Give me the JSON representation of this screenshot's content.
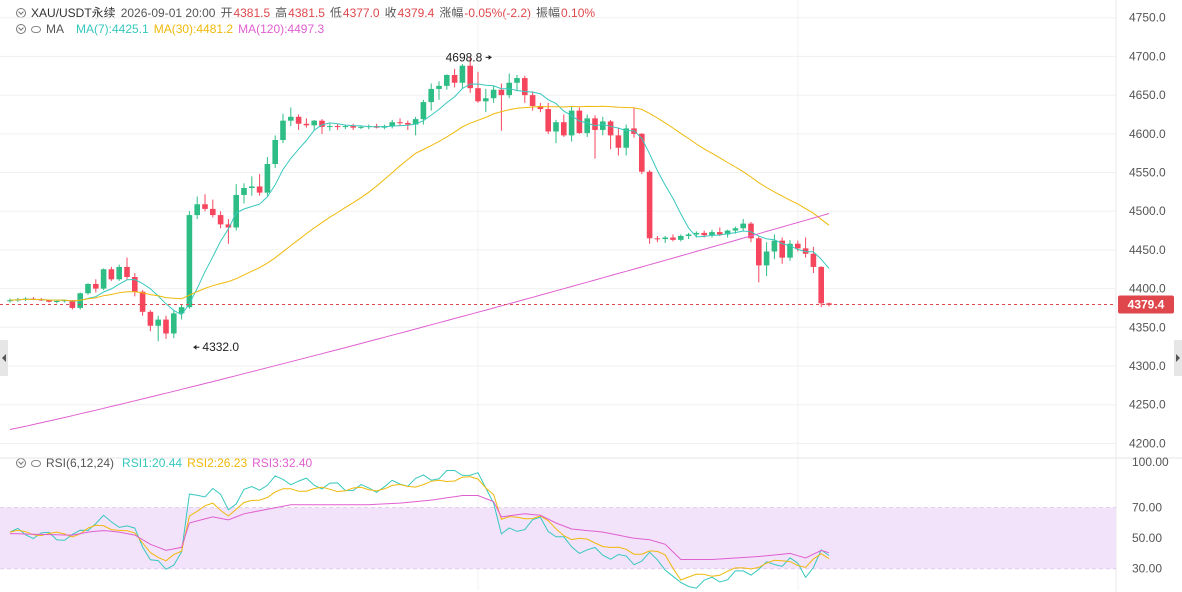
{
  "header": {
    "symbol": "XAU/USDT永续",
    "datetime": "2026-09-01 20:00",
    "open_label": "开",
    "open": "4381.5",
    "high_label": "高",
    "high": "4381.5",
    "low_label": "低",
    "low": "4377.0",
    "close_label": "收",
    "close": "4379.4",
    "change_label": "涨幅",
    "change": "-0.05%(-2.2)",
    "amplitude_label": "振幅",
    "amplitude": "0.10%"
  },
  "ma_legend": {
    "label": "MA",
    "ma7": "MA(7):4425.1",
    "ma30": "MA(30):4481.2",
    "ma120": "MA(120):4497.3"
  },
  "rsi_legend": {
    "label": "RSI(6,12,24)",
    "rsi1": "RSI1:20.44",
    "rsi2": "RSI2:26.23",
    "rsi3": "RSI3:32.40"
  },
  "colors": {
    "up": "#2ebd85",
    "down": "#f6465d",
    "ma7": "#37c8be",
    "ma30": "#f0b90b",
    "ma120": "#e05fcf",
    "rsi1": "#37c8be",
    "rsi2": "#f0b90b",
    "rsi3": "#e05fcf",
    "rsi_band": "#f2e3fb",
    "price_line": "#e0474c",
    "price_tag": "#e0474c",
    "grid": "#f0f0f0",
    "axis_text": "#555555"
  },
  "chart_data": [
    {
      "type": "candlestick",
      "title": "XAU/USDT永续",
      "y_ticks": [
        4750.0,
        4700.0,
        4650.0,
        4600.0,
        4550.0,
        4500.0,
        4450.0,
        4400.0,
        4350.0,
        4300.0,
        4250.0,
        4200.0
      ],
      "ylim": [
        4185,
        4760
      ],
      "last_price": 4379.4,
      "last_price_label": "4379.4",
      "annotations": [
        {
          "label": "4698.8",
          "value": 4698.8,
          "candle_index": 62
        },
        {
          "label": "4332.0",
          "value": 4332.0,
          "candle_index": 23
        }
      ],
      "candles": [
        [
          4384,
          4387,
          4382,
          4385
        ],
        [
          4385,
          4388,
          4383,
          4386
        ],
        [
          4386,
          4389,
          4384,
          4387
        ],
        [
          4387,
          4389,
          4385,
          4386
        ],
        [
          4386,
          4388,
          4384,
          4385
        ],
        [
          4385,
          4386,
          4382,
          4383
        ],
        [
          4383,
          4385,
          4381,
          4384
        ],
        [
          4384,
          4386,
          4382,
          4385
        ],
        [
          4385,
          4385,
          4373,
          4375
        ],
        [
          4375,
          4395,
          4373,
          4394
        ],
        [
          4394,
          4407,
          4392,
          4406
        ],
        [
          4406,
          4412,
          4395,
          4400
        ],
        [
          4400,
          4426,
          4398,
          4425
        ],
        [
          4425,
          4428,
          4410,
          4412
        ],
        [
          4412,
          4431,
          4410,
          4428
        ],
        [
          4428,
          4440,
          4412,
          4415
        ],
        [
          4415,
          4420,
          4390,
          4396
        ],
        [
          4396,
          4398,
          4365,
          4370
        ],
        [
          4370,
          4372,
          4345,
          4352
        ],
        [
          4352,
          4365,
          4332,
          4360
        ],
        [
          4360,
          4365,
          4335,
          4342
        ],
        [
          4342,
          4372,
          4336,
          4368
        ],
        [
          4368,
          4380,
          4360,
          4376
        ],
        [
          4376,
          4500,
          4374,
          4495
        ],
        [
          4495,
          4519,
          4490,
          4509
        ],
        [
          4509,
          4522,
          4500,
          4503
        ],
        [
          4503,
          4515,
          4492,
          4495
        ],
        [
          4495,
          4500,
          4478,
          4483
        ],
        [
          4483,
          4490,
          4458,
          4479
        ],
        [
          4479,
          4535,
          4475,
          4521
        ],
        [
          4521,
          4536,
          4510,
          4530
        ],
        [
          4530,
          4545,
          4520,
          4532
        ],
        [
          4532,
          4548,
          4520,
          4524
        ],
        [
          4524,
          4570,
          4520,
          4561
        ],
        [
          4561,
          4598,
          4556,
          4592
        ],
        [
          4592,
          4626,
          4588,
          4617
        ],
        [
          4617,
          4634,
          4610,
          4622
        ],
        [
          4622,
          4625,
          4605,
          4613
        ],
        [
          4613,
          4620,
          4608,
          4611
        ],
        [
          4611,
          4618,
          4604,
          4617
        ],
        [
          4617,
          4619,
          4600,
          4609
        ],
        [
          4609,
          4614,
          4604,
          4610
        ],
        [
          4610,
          4613,
          4605,
          4609
        ],
        [
          4609,
          4612,
          4606,
          4610
        ],
        [
          4610,
          4613,
          4605,
          4608
        ],
        [
          4608,
          4611,
          4606,
          4609
        ],
        [
          4609,
          4612,
          4606,
          4610
        ],
        [
          4610,
          4613,
          4607,
          4608
        ],
        [
          4608,
          4612,
          4606,
          4610
        ],
        [
          4610,
          4618,
          4607,
          4615
        ],
        [
          4615,
          4620,
          4610,
          4614
        ],
        [
          4614,
          4617,
          4605,
          4612
        ],
        [
          4612,
          4622,
          4598,
          4619
        ],
        [
          4619,
          4644,
          4612,
          4641
        ],
        [
          4641,
          4665,
          4630,
          4658
        ],
        [
          4658,
          4668,
          4644,
          4662
        ],
        [
          4662,
          4677,
          4657,
          4676
        ],
        [
          4676,
          4684,
          4660,
          4666
        ],
        [
          4666,
          4690,
          4658,
          4688
        ],
        [
          4688,
          4699,
          4653,
          4659
        ],
        [
          4659,
          4680,
          4640,
          4642
        ],
        [
          4642,
          4658,
          4628,
          4646
        ],
        [
          4646,
          4662,
          4640,
          4657
        ],
        [
          4657,
          4665,
          4604,
          4650
        ],
        [
          4650,
          4678,
          4646,
          4666
        ],
        [
          4666,
          4676,
          4655,
          4672
        ],
        [
          4672,
          4675,
          4640,
          4650
        ],
        [
          4650,
          4655,
          4630,
          4636
        ],
        [
          4636,
          4640,
          4628,
          4632
        ],
        [
          4632,
          4640,
          4600,
          4603
        ],
        [
          4603,
          4618,
          4588,
          4615
        ],
        [
          4615,
          4625,
          4596,
          4598
        ],
        [
          4598,
          4636,
          4590,
          4630
        ],
        [
          4630,
          4634,
          4600,
          4601
        ],
        [
          4601,
          4625,
          4596,
          4620
        ],
        [
          4620,
          4624,
          4568,
          4605
        ],
        [
          4605,
          4622,
          4598,
          4616
        ],
        [
          4616,
          4618,
          4580,
          4598
        ],
        [
          4598,
          4608,
          4572,
          4582
        ],
        [
          4582,
          4612,
          4572,
          4607
        ],
        [
          4607,
          4634,
          4595,
          4600
        ],
        [
          4600,
          4601,
          4548,
          4551
        ],
        [
          4551,
          4553,
          4458,
          4465
        ],
        [
          4465,
          4468,
          4460,
          4464
        ],
        [
          4464,
          4468,
          4459,
          4466
        ],
        [
          4466,
          4470,
          4461,
          4463
        ],
        [
          4463,
          4470,
          4461,
          4468
        ],
        [
          4468,
          4472,
          4464,
          4470
        ],
        [
          4470,
          4474,
          4466,
          4472
        ],
        [
          4472,
          4475,
          4466,
          4469
        ],
        [
          4469,
          4476,
          4466,
          4473
        ],
        [
          4473,
          4479,
          4468,
          4470
        ],
        [
          4470,
          4476,
          4466,
          4475
        ],
        [
          4475,
          4480,
          4471,
          4478
        ],
        [
          4478,
          4490,
          4475,
          4484
        ],
        [
          4484,
          4486,
          4460,
          4465
        ],
        [
          4465,
          4468,
          4408,
          4430
        ],
        [
          4430,
          4460,
          4416,
          4448
        ],
        [
          4448,
          4470,
          4438,
          4462
        ],
        [
          4462,
          4466,
          4432,
          4440
        ],
        [
          4440,
          4463,
          4436,
          4458
        ],
        [
          4458,
          4462,
          4448,
          4452
        ],
        [
          4452,
          4466,
          4440,
          4445
        ],
        [
          4445,
          4454,
          4420,
          4428
        ],
        [
          4428,
          4429,
          4376,
          4381
        ],
        [
          4381,
          4382,
          4377,
          4379
        ]
      ]
    },
    {
      "type": "line",
      "title": "RSI(6,12,24)",
      "y_ticks": [
        100.0,
        70.0,
        50.0,
        30.0
      ],
      "ylim": [
        16,
        100
      ],
      "band": [
        30,
        70
      ],
      "series": [
        {
          "name": "RSI1",
          "anchors": [
            [
              0,
              54
            ],
            [
              8,
              50
            ],
            [
              10,
              58
            ],
            [
              12,
              62
            ],
            [
              14,
              60
            ],
            [
              16,
              54
            ],
            [
              18,
              38
            ],
            [
              20,
              28
            ],
            [
              22,
              42
            ],
            [
              23,
              76
            ],
            [
              26,
              82
            ],
            [
              28,
              70
            ],
            [
              30,
              80
            ],
            [
              34,
              88
            ],
            [
              36,
              88
            ],
            [
              40,
              85
            ],
            [
              46,
              82
            ],
            [
              50,
              86
            ],
            [
              54,
              90
            ],
            [
              58,
              94
            ],
            [
              60,
              90
            ],
            [
              62,
              76
            ],
            [
              63,
              52
            ],
            [
              66,
              58
            ],
            [
              68,
              62
            ],
            [
              70,
              52
            ],
            [
              72,
              44
            ],
            [
              76,
              40
            ],
            [
              80,
              35
            ],
            [
              82,
              38
            ],
            [
              84,
              32
            ],
            [
              86,
              18
            ],
            [
              90,
              22
            ],
            [
              96,
              30
            ],
            [
              100,
              36
            ],
            [
              102,
              26
            ],
            [
              104,
              40
            ],
            [
              106,
              34
            ],
            [
              108,
              20
            ]
          ]
        },
        {
          "name": "RSI2",
          "anchors": [
            [
              0,
              54
            ],
            [
              8,
              52
            ],
            [
              10,
              56
            ],
            [
              12,
              58
            ],
            [
              14,
              56
            ],
            [
              16,
              52
            ],
            [
              18,
              42
            ],
            [
              20,
              34
            ],
            [
              22,
              42
            ],
            [
              23,
              66
            ],
            [
              26,
              72
            ],
            [
              28,
              66
            ],
            [
              30,
              72
            ],
            [
              34,
              80
            ],
            [
              36,
              82
            ],
            [
              40,
              82
            ],
            [
              46,
              82
            ],
            [
              50,
              84
            ],
            [
              54,
              86
            ],
            [
              58,
              90
            ],
            [
              60,
              88
            ],
            [
              62,
              80
            ],
            [
              63,
              62
            ],
            [
              66,
              64
            ],
            [
              68,
              64
            ],
            [
              70,
              56
            ],
            [
              72,
              50
            ],
            [
              76,
              46
            ],
            [
              80,
              40
            ],
            [
              82,
              42
            ],
            [
              84,
              38
            ],
            [
              86,
              24
            ],
            [
              90,
              26
            ],
            [
              96,
              32
            ],
            [
              100,
              36
            ],
            [
              102,
              30
            ],
            [
              104,
              40
            ],
            [
              106,
              36
            ],
            [
              108,
              26
            ]
          ]
        },
        {
          "name": "RSI3",
          "anchors": [
            [
              0,
              53
            ],
            [
              8,
              52
            ],
            [
              10,
              54
            ],
            [
              12,
              55
            ],
            [
              14,
              54
            ],
            [
              16,
              52
            ],
            [
              18,
              46
            ],
            [
              20,
              42
            ],
            [
              22,
              44
            ],
            [
              23,
              60
            ],
            [
              26,
              64
            ],
            [
              28,
              62
            ],
            [
              30,
              66
            ],
            [
              34,
              70
            ],
            [
              36,
              72
            ],
            [
              40,
              72
            ],
            [
              46,
              72
            ],
            [
              50,
              73
            ],
            [
              54,
              75
            ],
            [
              58,
              78
            ],
            [
              60,
              78
            ],
            [
              62,
              74
            ],
            [
              63,
              64
            ],
            [
              66,
              66
            ],
            [
              68,
              65
            ],
            [
              70,
              60
            ],
            [
              72,
              56
            ],
            [
              76,
              54
            ],
            [
              80,
              50
            ],
            [
              82,
              49
            ],
            [
              84,
              46
            ],
            [
              86,
              36
            ],
            [
              90,
              36
            ],
            [
              96,
              38
            ],
            [
              100,
              40
            ],
            [
              102,
              37
            ],
            [
              104,
              42
            ],
            [
              106,
              39
            ],
            [
              108,
              32
            ]
          ]
        }
      ]
    }
  ]
}
